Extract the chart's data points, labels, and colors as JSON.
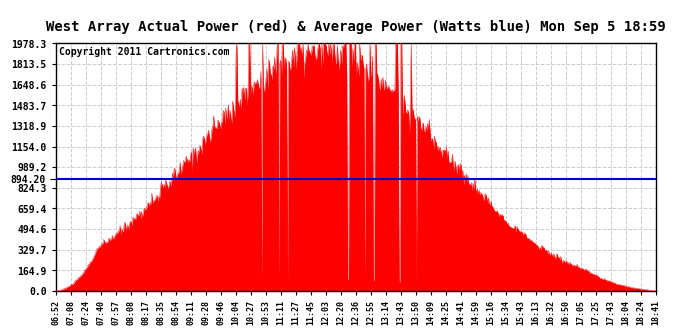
{
  "title": "West Array Actual Power (red) & Average Power (Watts blue) Mon Sep 5 18:59",
  "copyright": "Copyright 2011 Cartronics.com",
  "avg_power": 894.2,
  "max_power": 1978.3,
  "yticks": [
    0.0,
    164.9,
    329.7,
    494.6,
    659.4,
    824.3,
    989.2,
    1154.0,
    1318.9,
    1483.7,
    1648.6,
    1813.5,
    1978.3
  ],
  "avg_label": "894.20",
  "xtick_labels": [
    "06:52",
    "07:08",
    "07:24",
    "07:40",
    "07:57",
    "08:08",
    "08:17",
    "08:35",
    "08:54",
    "09:11",
    "09:28",
    "09:46",
    "10:04",
    "10:27",
    "10:53",
    "11:11",
    "11:27",
    "11:45",
    "12:03",
    "12:20",
    "12:36",
    "12:55",
    "13:14",
    "13:43",
    "13:50",
    "14:09",
    "14:25",
    "14:41",
    "14:59",
    "15:16",
    "15:34",
    "15:43",
    "16:13",
    "16:32",
    "16:50",
    "17:05",
    "17:25",
    "17:43",
    "18:04",
    "18:24",
    "18:41"
  ],
  "bg_color": "#ffffff",
  "plot_bg_color": "#ffffff",
  "grid_color": "#cccccc",
  "fill_color": "#ff0000",
  "line_color": "#ff0000",
  "avg_line_color": "#0000cc",
  "title_bg": "#c8c8c8",
  "title_fontsize": 10,
  "copyright_fontsize": 7
}
